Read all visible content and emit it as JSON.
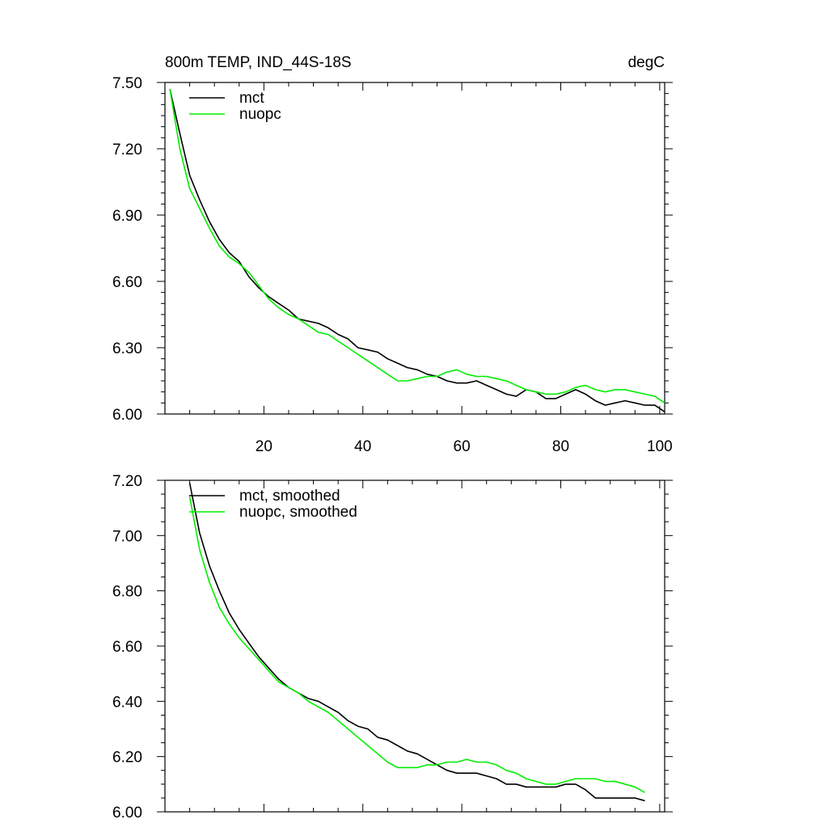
{
  "figure": {
    "title_left": "800m TEMP, IND_44S-18S",
    "title_right": "degC"
  },
  "chart_data": [
    {
      "type": "line",
      "title": "800m TEMP, IND_44S-18S",
      "units": "degC",
      "xlabel": "",
      "ylabel": "",
      "xlim": [
        0,
        101
      ],
      "ylim": [
        6.0,
        7.5
      ],
      "x_ticks": [
        20,
        40,
        60,
        80,
        100
      ],
      "y_ticks": [
        6.0,
        6.3,
        6.6,
        6.9,
        7.2,
        7.5
      ],
      "y_tick_labels": [
        "6.00",
        "6.30",
        "6.60",
        "6.90",
        "7.20",
        "7.50"
      ],
      "legend": "top-left",
      "series": [
        {
          "name": "mct",
          "color": "#000000",
          "x": [
            1,
            3,
            5,
            7,
            9,
            11,
            13,
            15,
            17,
            19,
            21,
            23,
            25,
            27,
            29,
            31,
            33,
            35,
            37,
            39,
            41,
            43,
            45,
            47,
            49,
            51,
            53,
            55,
            57,
            59,
            61,
            63,
            65,
            67,
            69,
            71,
            73,
            75,
            77,
            79,
            81,
            83,
            85,
            87,
            89,
            91,
            93,
            95,
            97,
            99,
            101
          ],
          "values": [
            7.47,
            7.27,
            7.08,
            6.97,
            6.87,
            6.79,
            6.73,
            6.69,
            6.62,
            6.57,
            6.53,
            6.5,
            6.47,
            6.43,
            6.42,
            6.41,
            6.39,
            6.36,
            6.34,
            6.3,
            6.29,
            6.28,
            6.25,
            6.23,
            6.21,
            6.2,
            6.18,
            6.17,
            6.15,
            6.14,
            6.14,
            6.15,
            6.13,
            6.11,
            6.09,
            6.08,
            6.11,
            6.1,
            6.07,
            6.07,
            6.09,
            6.11,
            6.09,
            6.06,
            6.04,
            6.05,
            6.06,
            6.05,
            6.04,
            6.04,
            6.01
          ]
        },
        {
          "name": "nuopc",
          "color": "#00ee00",
          "x": [
            1,
            3,
            5,
            7,
            9,
            11,
            13,
            15,
            17,
            19,
            21,
            23,
            25,
            27,
            29,
            31,
            33,
            35,
            37,
            39,
            41,
            43,
            45,
            47,
            49,
            51,
            53,
            55,
            57,
            59,
            61,
            63,
            65,
            67,
            69,
            71,
            73,
            75,
            77,
            79,
            81,
            83,
            85,
            87,
            89,
            91,
            93,
            95,
            97,
            99,
            101
          ],
          "values": [
            7.47,
            7.2,
            7.02,
            6.93,
            6.84,
            6.76,
            6.71,
            6.68,
            6.64,
            6.58,
            6.52,
            6.48,
            6.45,
            6.43,
            6.4,
            6.37,
            6.36,
            6.33,
            6.3,
            6.27,
            6.24,
            6.21,
            6.18,
            6.15,
            6.15,
            6.16,
            6.17,
            6.17,
            6.19,
            6.2,
            6.18,
            6.17,
            6.17,
            6.16,
            6.15,
            6.13,
            6.11,
            6.1,
            6.09,
            6.09,
            6.1,
            6.12,
            6.13,
            6.11,
            6.1,
            6.11,
            6.11,
            6.1,
            6.09,
            6.08,
            6.05
          ]
        }
      ]
    },
    {
      "type": "line",
      "title": "",
      "xlabel": "",
      "ylabel": "",
      "xlim": [
        0,
        101
      ],
      "ylim": [
        6.0,
        7.2
      ],
      "x_ticks": [
        20,
        40,
        60,
        80,
        100
      ],
      "y_ticks": [
        6.0,
        6.2,
        6.4,
        6.6,
        6.8,
        7.0,
        7.2
      ],
      "y_tick_labels": [
        "6.00",
        "6.20",
        "6.40",
        "6.60",
        "6.80",
        "7.00",
        "7.20"
      ],
      "legend": "top-left",
      "series": [
        {
          "name": "mct, smoothed",
          "color": "#000000",
          "x": [
            5,
            7,
            9,
            11,
            13,
            15,
            17,
            19,
            21,
            23,
            25,
            27,
            29,
            31,
            33,
            35,
            37,
            39,
            41,
            43,
            45,
            47,
            49,
            51,
            53,
            55,
            57,
            59,
            61,
            63,
            65,
            67,
            69,
            71,
            73,
            75,
            77,
            79,
            81,
            83,
            85,
            87,
            89,
            91,
            93,
            95,
            97
          ],
          "values": [
            7.19,
            7.01,
            6.89,
            6.8,
            6.72,
            6.66,
            6.61,
            6.56,
            6.52,
            6.48,
            6.45,
            6.43,
            6.41,
            6.4,
            6.38,
            6.36,
            6.33,
            6.31,
            6.3,
            6.27,
            6.26,
            6.24,
            6.22,
            6.21,
            6.19,
            6.17,
            6.15,
            6.14,
            6.14,
            6.14,
            6.13,
            6.12,
            6.1,
            6.1,
            6.09,
            6.09,
            6.09,
            6.09,
            6.1,
            6.1,
            6.08,
            6.05,
            6.05,
            6.05,
            6.05,
            6.05,
            6.04
          ]
        },
        {
          "name": "nuopc, smoothed",
          "color": "#00ee00",
          "x": [
            5,
            7,
            9,
            11,
            13,
            15,
            17,
            19,
            21,
            23,
            25,
            27,
            29,
            31,
            33,
            35,
            37,
            39,
            41,
            43,
            45,
            47,
            49,
            51,
            53,
            55,
            57,
            59,
            61,
            63,
            65,
            67,
            69,
            71,
            73,
            75,
            77,
            79,
            81,
            83,
            85,
            87,
            89,
            91,
            93,
            95,
            97
          ],
          "values": [
            7.14,
            6.95,
            6.83,
            6.74,
            6.68,
            6.63,
            6.59,
            6.55,
            6.51,
            6.47,
            6.45,
            6.43,
            6.4,
            6.38,
            6.36,
            6.33,
            6.3,
            6.27,
            6.24,
            6.21,
            6.18,
            6.16,
            6.16,
            6.16,
            6.17,
            6.17,
            6.18,
            6.18,
            6.19,
            6.18,
            6.18,
            6.17,
            6.15,
            6.14,
            6.12,
            6.11,
            6.1,
            6.1,
            6.11,
            6.12,
            6.12,
            6.12,
            6.11,
            6.11,
            6.1,
            6.09,
            6.07
          ]
        }
      ]
    }
  ]
}
